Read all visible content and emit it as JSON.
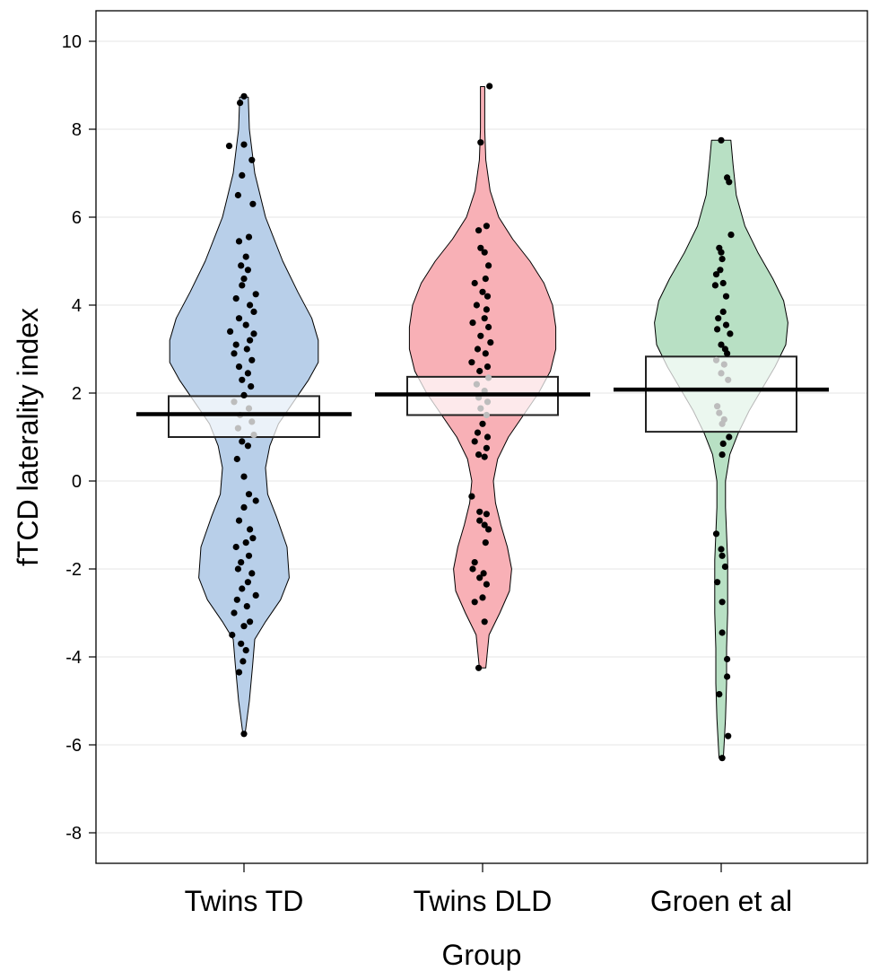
{
  "chart_data": {
    "type": "violin",
    "xlabel": "Group",
    "ylabel": "fTCD laterality index",
    "ylim": [
      -8.7,
      10.7
    ],
    "yticks": [
      10,
      8,
      6,
      4,
      2,
      0,
      -2,
      -4,
      -6,
      -8
    ],
    "ytick_labels": [
      "10",
      "8",
      "6",
      "4",
      "2",
      "0",
      "-2",
      "-4",
      "-6",
      "-8"
    ],
    "grid": "horizontal",
    "categories": [
      "Twins TD",
      "Twins DLD",
      "Groen et al"
    ],
    "series": [
      {
        "name": "Twins TD",
        "color": "#b8cfe9",
        "mean": 1.52,
        "ci": [
          1.0,
          1.93
        ],
        "min": -5.75,
        "max": 8.73,
        "density": [
          [
            8.73,
            0.04
          ],
          [
            8.0,
            0.05
          ],
          [
            7.0,
            0.1
          ],
          [
            6.0,
            0.2
          ],
          [
            5.0,
            0.36
          ],
          [
            4.3,
            0.5
          ],
          [
            3.7,
            0.63
          ],
          [
            3.2,
            0.69
          ],
          [
            2.7,
            0.69
          ],
          [
            2.3,
            0.6
          ],
          [
            1.8,
            0.46
          ],
          [
            1.3,
            0.32
          ],
          [
            0.8,
            0.24
          ],
          [
            0.3,
            0.2
          ],
          [
            -0.3,
            0.22
          ],
          [
            -0.8,
            0.3
          ],
          [
            -1.5,
            0.4
          ],
          [
            -2.2,
            0.42
          ],
          [
            -2.7,
            0.34
          ],
          [
            -3.2,
            0.2
          ],
          [
            -3.6,
            0.1
          ],
          [
            -4.2,
            0.08
          ],
          [
            -5.0,
            0.05
          ],
          [
            -5.75,
            0.01
          ]
        ],
        "points": [
          [
            8.75,
            0.0
          ],
          [
            8.6,
            -0.04
          ],
          [
            7.65,
            0.0
          ],
          [
            7.62,
            -0.15
          ],
          [
            7.3,
            0.08
          ],
          [
            6.95,
            -0.02
          ],
          [
            6.5,
            -0.06
          ],
          [
            6.3,
            0.09
          ],
          [
            5.55,
            0.05
          ],
          [
            5.45,
            -0.05
          ],
          [
            5.1,
            0.02
          ],
          [
            4.9,
            -0.03
          ],
          [
            4.8,
            0.04
          ],
          [
            4.6,
            0.0
          ],
          [
            4.45,
            -0.02
          ],
          [
            4.25,
            0.12
          ],
          [
            4.15,
            -0.08
          ],
          [
            4.0,
            0.06
          ],
          [
            3.85,
            0.1
          ],
          [
            3.7,
            -0.05
          ],
          [
            3.55,
            0.02
          ],
          [
            3.4,
            -0.14
          ],
          [
            3.35,
            0.1
          ],
          [
            3.2,
            0.06
          ],
          [
            3.1,
            -0.08
          ],
          [
            3.0,
            0.03
          ],
          [
            2.9,
            -0.1
          ],
          [
            2.75,
            0.08
          ],
          [
            2.6,
            -0.05
          ],
          [
            2.45,
            0.04
          ],
          [
            2.3,
            -0.02
          ],
          [
            2.15,
            0.07
          ],
          [
            1.95,
            0.0
          ],
          [
            1.8,
            -0.1
          ],
          [
            1.65,
            0.05
          ],
          [
            1.5,
            -0.04
          ],
          [
            1.35,
            0.08
          ],
          [
            1.2,
            -0.06
          ],
          [
            1.05,
            0.1
          ],
          [
            0.9,
            -0.02
          ],
          [
            0.8,
            0.04
          ],
          [
            0.5,
            -0.07
          ],
          [
            0.1,
            0.0
          ],
          [
            -0.3,
            0.05
          ],
          [
            -0.45,
            0.12
          ],
          [
            -0.6,
            0.0
          ],
          [
            -0.9,
            -0.05
          ],
          [
            -1.1,
            0.06
          ],
          [
            -1.3,
            0.09
          ],
          [
            -1.4,
            0.02
          ],
          [
            -1.5,
            -0.08
          ],
          [
            -1.7,
            0.05
          ],
          [
            -1.85,
            -0.03
          ],
          [
            -2.0,
            -0.06
          ],
          [
            -2.1,
            0.08
          ],
          [
            -2.3,
            0.04
          ],
          [
            -2.45,
            -0.02
          ],
          [
            -2.6,
            0.12
          ],
          [
            -2.7,
            -0.07
          ],
          [
            -2.85,
            0.03
          ],
          [
            -3.0,
            -0.1
          ],
          [
            -3.2,
            0.06
          ],
          [
            -3.3,
            0.0
          ],
          [
            -3.5,
            -0.12
          ],
          [
            -3.7,
            -0.03
          ],
          [
            -3.85,
            0.02
          ],
          [
            -4.1,
            -0.01
          ],
          [
            -4.35,
            -0.05
          ],
          [
            -5.75,
            0.0
          ]
        ]
      },
      {
        "name": "Twins DLD",
        "color": "#f8b0b6",
        "mean": 1.97,
        "ci": [
          1.5,
          2.37
        ],
        "min": -4.25,
        "max": 8.97,
        "density": [
          [
            8.97,
            0.02
          ],
          [
            8.0,
            0.02
          ],
          [
            7.3,
            0.03
          ],
          [
            6.6,
            0.07
          ],
          [
            6.0,
            0.15
          ],
          [
            5.5,
            0.28
          ],
          [
            5.0,
            0.44
          ],
          [
            4.5,
            0.57
          ],
          [
            4.0,
            0.65
          ],
          [
            3.5,
            0.68
          ],
          [
            3.0,
            0.68
          ],
          [
            2.5,
            0.63
          ],
          [
            2.0,
            0.52
          ],
          [
            1.5,
            0.38
          ],
          [
            1.0,
            0.24
          ],
          [
            0.5,
            0.14
          ],
          [
            0.0,
            0.1
          ],
          [
            -0.5,
            0.12
          ],
          [
            -1.0,
            0.17
          ],
          [
            -1.5,
            0.23
          ],
          [
            -2.0,
            0.27
          ],
          [
            -2.5,
            0.25
          ],
          [
            -3.0,
            0.16
          ],
          [
            -3.5,
            0.06
          ],
          [
            -4.0,
            0.04
          ],
          [
            -4.25,
            0.03
          ]
        ],
        "points": [
          [
            8.98,
            0.07
          ],
          [
            7.7,
            -0.02
          ],
          [
            5.8,
            0.04
          ],
          [
            5.7,
            -0.04
          ],
          [
            5.3,
            -0.02
          ],
          [
            5.2,
            0.02
          ],
          [
            4.9,
            0.06
          ],
          [
            4.6,
            0.03
          ],
          [
            4.5,
            -0.08
          ],
          [
            4.3,
            0.0
          ],
          [
            4.2,
            0.05
          ],
          [
            4.0,
            -0.06
          ],
          [
            3.9,
            0.04
          ],
          [
            3.7,
            0.02
          ],
          [
            3.6,
            -0.1
          ],
          [
            3.5,
            0.06
          ],
          [
            3.3,
            -0.02
          ],
          [
            3.15,
            0.08
          ],
          [
            3.0,
            -0.05
          ],
          [
            2.9,
            0.03
          ],
          [
            2.7,
            -0.11
          ],
          [
            2.6,
            0.05
          ],
          [
            2.5,
            -0.03
          ],
          [
            2.35,
            0.06
          ],
          [
            2.2,
            -0.06
          ],
          [
            2.05,
            0.02
          ],
          [
            1.9,
            -0.04
          ],
          [
            1.8,
            0.05
          ],
          [
            1.65,
            -0.02
          ],
          [
            1.5,
            0.04
          ],
          [
            1.3,
            0.0
          ],
          [
            1.1,
            -0.05
          ],
          [
            1.0,
            0.05
          ],
          [
            0.9,
            -0.08
          ],
          [
            0.75,
            0.04
          ],
          [
            0.6,
            -0.04
          ],
          [
            0.55,
            0.02
          ],
          [
            -0.35,
            -0.11
          ],
          [
            -0.7,
            -0.03
          ],
          [
            -0.75,
            0.04
          ],
          [
            -0.9,
            -0.03
          ],
          [
            -1.0,
            0.02
          ],
          [
            -1.1,
            0.06
          ],
          [
            -1.4,
            0.03
          ],
          [
            -1.85,
            -0.08
          ],
          [
            -2.0,
            -0.1
          ],
          [
            -2.1,
            0.01
          ],
          [
            -2.2,
            -0.03
          ],
          [
            -2.35,
            0.04
          ],
          [
            -2.65,
            0.0
          ],
          [
            -2.75,
            -0.08
          ],
          [
            -3.2,
            0.02
          ],
          [
            -4.25,
            -0.04
          ]
        ]
      },
      {
        "name": "Groen et al",
        "color": "#b8e0c4",
        "mean": 2.08,
        "ci": [
          1.12,
          2.83
        ],
        "min": -6.3,
        "max": 7.75,
        "density": [
          [
            7.75,
            0.09
          ],
          [
            7.2,
            0.11
          ],
          [
            6.5,
            0.14
          ],
          [
            5.8,
            0.22
          ],
          [
            5.2,
            0.34
          ],
          [
            4.6,
            0.48
          ],
          [
            4.1,
            0.58
          ],
          [
            3.6,
            0.62
          ],
          [
            3.1,
            0.6
          ],
          [
            2.6,
            0.5
          ],
          [
            2.1,
            0.38
          ],
          [
            1.6,
            0.26
          ],
          [
            1.1,
            0.16
          ],
          [
            0.6,
            0.08
          ],
          [
            0.0,
            0.04
          ],
          [
            -0.6,
            0.04
          ],
          [
            -1.2,
            0.05
          ],
          [
            -1.8,
            0.06
          ],
          [
            -2.4,
            0.06
          ],
          [
            -3.0,
            0.06
          ],
          [
            -3.8,
            0.05
          ],
          [
            -4.6,
            0.05
          ],
          [
            -5.4,
            0.04
          ],
          [
            -6.3,
            0.02
          ]
        ],
        "points": [
          [
            7.75,
            0.0
          ],
          [
            6.9,
            0.06
          ],
          [
            6.8,
            0.08
          ],
          [
            5.6,
            0.1
          ],
          [
            5.3,
            -0.02
          ],
          [
            5.2,
            0.0
          ],
          [
            5.05,
            0.01
          ],
          [
            4.8,
            -0.01
          ],
          [
            4.7,
            -0.05
          ],
          [
            4.5,
            0.02
          ],
          [
            4.45,
            -0.06
          ],
          [
            4.2,
            0.05
          ],
          [
            3.85,
            0.02
          ],
          [
            3.7,
            -0.03
          ],
          [
            3.55,
            0.05
          ],
          [
            3.45,
            -0.04
          ],
          [
            3.35,
            0.09
          ],
          [
            3.1,
            0.0
          ],
          [
            3.0,
            0.04
          ],
          [
            2.9,
            0.06
          ],
          [
            2.75,
            -0.05
          ],
          [
            2.65,
            0.03
          ],
          [
            2.45,
            0.0
          ],
          [
            2.3,
            0.07
          ],
          [
            1.7,
            -0.04
          ],
          [
            1.55,
            -0.02
          ],
          [
            1.4,
            0.03
          ],
          [
            1.3,
            0.01
          ],
          [
            1.0,
            0.08
          ],
          [
            0.85,
            0.02
          ],
          [
            0.6,
            0.01
          ],
          [
            -1.2,
            -0.05
          ],
          [
            -1.55,
            0.0
          ],
          [
            -1.7,
            0.01
          ],
          [
            -1.95,
            0.04
          ],
          [
            -2.3,
            -0.04
          ],
          [
            -2.75,
            0.01
          ],
          [
            -3.45,
            0.01
          ],
          [
            -4.05,
            0.06
          ],
          [
            -4.45,
            0.06
          ],
          [
            -4.85,
            -0.02
          ],
          [
            -5.8,
            0.07
          ],
          [
            -6.3,
            0.01
          ]
        ]
      }
    ]
  }
}
